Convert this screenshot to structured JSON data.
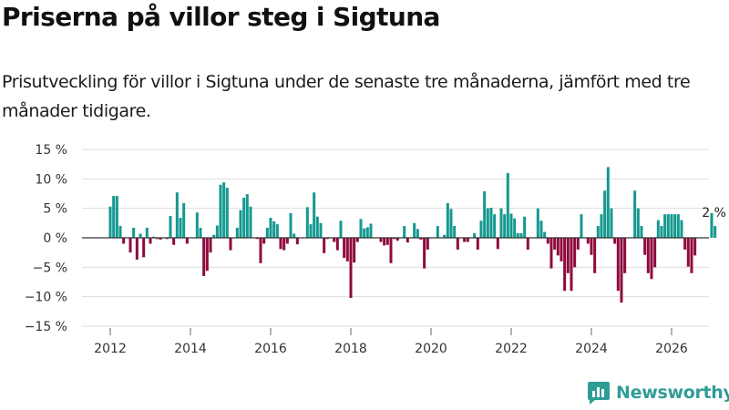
{
  "header": {
    "title": "Priserna på villor steg i Sigtuna",
    "subtitle": "Prisutveckling för villor i Sigtuna under de senaste tre månaderna, jämfört med tre månader tidigare."
  },
  "brand": {
    "name": "Newsworthy",
    "color": "#2f9d96"
  },
  "colors": {
    "positive": "#14998f",
    "negative": "#8f0a3e",
    "gridline": "#dddddd",
    "zero_line": "#333333"
  },
  "chart_data": {
    "type": "bar",
    "title": "Priserna på villor steg i Sigtuna",
    "ylabel": "",
    "xlabel": "",
    "ylim": [
      -15,
      15
    ],
    "yticks": [
      -15,
      -10,
      -5,
      0,
      5,
      10,
      15
    ],
    "ytick_labels": [
      "−15 %",
      "−10 %",
      "−5 %",
      "0 %",
      "5 %",
      "10 %",
      "15 %"
    ],
    "xticks": [
      2012,
      2014,
      2016,
      2018,
      2020,
      2022,
      2024,
      2026
    ],
    "xtick_labels": [
      "2012",
      "2014",
      "2016",
      "2018",
      "2020",
      "2022",
      "2024",
      "2026"
    ],
    "x_start": 2012.0,
    "x_step_years": 0.08333,
    "values": [
      5.3,
      7.1,
      7.1,
      2.0,
      -1.0,
      0.0,
      -2.5,
      1.7,
      -3.7,
      0.7,
      -3.3,
      1.7,
      -1.0,
      0.2,
      -0.2,
      -0.3,
      0.0,
      -0.2,
      3.7,
      -1.2,
      7.7,
      3.4,
      5.9,
      -1.0,
      0.0,
      0.0,
      4.3,
      1.7,
      -6.5,
      -5.6,
      -2.5,
      0.5,
      2.1,
      9.0,
      9.4,
      8.5,
      -2.1,
      0.0,
      1.7,
      4.7,
      6.8,
      7.4,
      5.3,
      0.0,
      -0.2,
      -4.3,
      -1.0,
      1.7,
      3.4,
      2.8,
      2.3,
      -1.9,
      -2.1,
      -1.0,
      4.2,
      0.7,
      -1.1,
      0.0,
      0.0,
      5.2,
      2.3,
      7.7,
      3.6,
      2.5,
      -2.6,
      -0.2,
      0.0,
      -0.7,
      -2.1,
      2.9,
      -3.4,
      -4.0,
      -10.2,
      -4.2,
      -0.7,
      3.2,
      1.6,
      1.8,
      2.4,
      0.0,
      0.0,
      -0.7,
      -1.3,
      -1.2,
      -4.3,
      -0.2,
      -0.5,
      0.0,
      2.0,
      -0.8,
      0.0,
      2.5,
      1.5,
      -0.3,
      -5.2,
      -2.0,
      0.0,
      0.0,
      2.0,
      0.0,
      0.5,
      5.9,
      4.9,
      2.0,
      -2.0,
      0.0,
      -0.7,
      -0.7,
      0.0,
      0.8,
      -2.0,
      2.9,
      7.9,
      5.0,
      5.1,
      4.0,
      -1.9,
      5.0,
      4.0,
      11.0,
      4.1,
      3.3,
      0.8,
      0.8,
      3.6,
      -2.0,
      0.0,
      0.0,
      5.0,
      2.9,
      1.0,
      -1.0,
      -5.2,
      -2.0,
      -3.0,
      -4.0,
      -9.0,
      -6.0,
      -9.0,
      -5.0,
      -2.0,
      4.0,
      0.0,
      -1.0,
      -2.9,
      -6.0,
      2.0,
      4.0,
      8.0,
      12.0,
      5.0,
      -1.0,
      -9.0,
      -11.0,
      -6.0,
      0.0,
      0.0,
      8.0,
      5.0,
      2.0,
      -2.9,
      -6.0,
      -7.0,
      -5.0,
      3.0,
      2.0,
      4.0,
      4.0,
      4.0,
      4.0,
      4.0,
      3.0,
      -2.0,
      -4.9,
      -6.0,
      -3.0,
      0.0,
      0.0,
      0.0,
      0.0,
      4.2,
      2.0
    ],
    "last_value_label": "2 %"
  }
}
